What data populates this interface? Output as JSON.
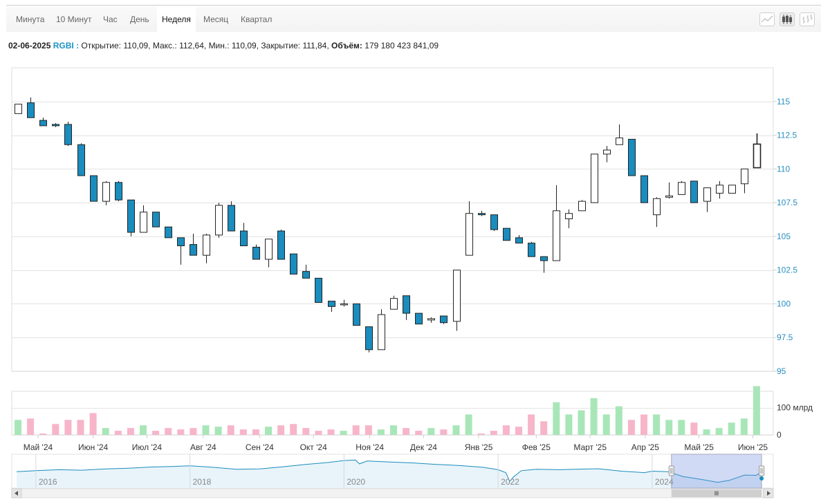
{
  "tabs": [
    {
      "label": "Минута",
      "active": false
    },
    {
      "label": "10 Минут",
      "active": false
    },
    {
      "label": "Час",
      "active": false
    },
    {
      "label": "День",
      "active": false
    },
    {
      "label": "Неделя",
      "active": true
    },
    {
      "label": "Месяц",
      "active": false
    },
    {
      "label": "Квартал",
      "active": false
    }
  ],
  "toolbar": [
    {
      "icon": "line-chart-icon"
    },
    {
      "icon": "candlestick-chart-icon",
      "active": true
    },
    {
      "icon": "ohlc-chart-icon"
    }
  ],
  "info": {
    "date": "02-06-2025",
    "ticker": "RGBI",
    "open_label": "Открытие:",
    "open": "110,09",
    "high_label": "Макс.:",
    "high": "112,64",
    "low_label": "Мин.:",
    "low": "110,09",
    "close_label": "Закрытие:",
    "close": "111,84",
    "volume_label": "Объём:",
    "volume": "179 180 423 841,09"
  },
  "colors": {
    "up": "#ffffff",
    "down": "#1a8cbd",
    "vol_up": "#a8e6b8",
    "vol_down": "#f7b5c9",
    "axis_text": "#2a8fbf",
    "grid": "#e3e3e3"
  },
  "chart_data": {
    "type": "candlestick",
    "interval": "week",
    "ylim": [
      95,
      117.5
    ],
    "yticks": [
      "95",
      "97.5",
      "100",
      "102.5",
      "105",
      "107.5",
      "110",
      "112.5",
      "115"
    ],
    "ytick_values": [
      95,
      97.5,
      100,
      102.5,
      105,
      107.5,
      110,
      112.5,
      115
    ],
    "volume_ticks": [
      "0",
      "100 млрд"
    ],
    "volume_tick_values": [
      0,
      100
    ],
    "volume_unit": "млрд",
    "volume_max": 160,
    "x_labels": [
      {
        "label": "Май '24",
        "week": 1.6
      },
      {
        "label": "Июн '24",
        "week": 6
      },
      {
        "label": "Июл '24",
        "week": 10.3
      },
      {
        "label": "Авг '24",
        "week": 14.8
      },
      {
        "label": "Сен '24",
        "week": 19.3
      },
      {
        "label": "Окт '24",
        "week": 23.6
      },
      {
        "label": "Ноя '24",
        "week": 28.1
      },
      {
        "label": "Дек '24",
        "week": 32.4
      },
      {
        "label": "Янв '25",
        "week": 36.8
      },
      {
        "label": "Фев '25",
        "week": 41.4
      },
      {
        "label": "Март '25",
        "week": 45.7
      },
      {
        "label": "Апр '25",
        "week": 50.1
      },
      {
        "label": "Май '25",
        "week": 54.4
      },
      {
        "label": "Июн '25",
        "week": 58.7
      }
    ],
    "candles": [
      {
        "o": 114.1,
        "h": 114.8,
        "l": 114.1,
        "c": 114.8,
        "v": 55
      },
      {
        "o": 114.9,
        "h": 115.3,
        "l": 113.8,
        "c": 113.8,
        "v": 60
      },
      {
        "o": 113.6,
        "h": 113.8,
        "l": 113.2,
        "c": 113.2,
        "v": 5
      },
      {
        "o": 113.3,
        "h": 113.4,
        "l": 113.1,
        "c": 113.2,
        "v": 40
      },
      {
        "o": 113.3,
        "h": 113.5,
        "l": 111.7,
        "c": 111.8,
        "v": 55
      },
      {
        "o": 111.8,
        "h": 111.9,
        "l": 109.5,
        "c": 109.5,
        "v": 55
      },
      {
        "o": 109.5,
        "h": 109.5,
        "l": 107.6,
        "c": 107.6,
        "v": 80
      },
      {
        "o": 107.6,
        "h": 109.1,
        "l": 107.3,
        "c": 109.0,
        "v": 25
      },
      {
        "o": 109.0,
        "h": 109.1,
        "l": 107.6,
        "c": 107.7,
        "v": 15
      },
      {
        "o": 107.7,
        "h": 107.7,
        "l": 105.0,
        "c": 105.3,
        "v": 25
      },
      {
        "o": 105.3,
        "h": 107.3,
        "l": 105.3,
        "c": 106.8,
        "v": 35
      },
      {
        "o": 106.8,
        "h": 106.8,
        "l": 105.7,
        "c": 105.7,
        "v": 15
      },
      {
        "o": 105.7,
        "h": 105.7,
        "l": 104.9,
        "c": 104.9,
        "v": 25
      },
      {
        "o": 104.9,
        "h": 104.9,
        "l": 102.9,
        "c": 104.3,
        "v": 20
      },
      {
        "o": 104.4,
        "h": 105.2,
        "l": 103.6,
        "c": 103.6,
        "v": 25
      },
      {
        "o": 103.6,
        "h": 105.2,
        "l": 103.0,
        "c": 105.1,
        "v": 35
      },
      {
        "o": 105.1,
        "h": 107.5,
        "l": 104.9,
        "c": 107.3,
        "v": 30
      },
      {
        "o": 107.3,
        "h": 107.6,
        "l": 105.4,
        "c": 105.4,
        "v": 35
      },
      {
        "o": 105.4,
        "h": 106.0,
        "l": 104.3,
        "c": 104.3,
        "v": 20
      },
      {
        "o": 104.2,
        "h": 104.4,
        "l": 103.3,
        "c": 103.3,
        "v": 20
      },
      {
        "o": 103.3,
        "h": 104.8,
        "l": 102.7,
        "c": 104.8,
        "v": 30
      },
      {
        "o": 105.4,
        "h": 105.5,
        "l": 103.3,
        "c": 103.3,
        "v": 35
      },
      {
        "o": 103.7,
        "h": 103.7,
        "l": 102.2,
        "c": 102.2,
        "v": 40
      },
      {
        "o": 102.4,
        "h": 102.9,
        "l": 101.9,
        "c": 101.9,
        "v": 25
      },
      {
        "o": 101.9,
        "h": 101.9,
        "l": 100.1,
        "c": 100.1,
        "v": 15
      },
      {
        "o": 100.2,
        "h": 100.2,
        "l": 99.4,
        "c": 99.8,
        "v": 20
      },
      {
        "o": 100.0,
        "h": 100.3,
        "l": 99.8,
        "c": 100.0,
        "v": 15
      },
      {
        "o": 100.0,
        "h": 100.0,
        "l": 98.4,
        "c": 98.4,
        "v": 35
      },
      {
        "o": 98.3,
        "h": 98.3,
        "l": 96.4,
        "c": 96.6,
        "v": 35
      },
      {
        "o": 96.6,
        "h": 99.6,
        "l": 96.6,
        "c": 99.2,
        "v": 20
      },
      {
        "o": 99.6,
        "h": 100.6,
        "l": 99.6,
        "c": 100.4,
        "v": 35
      },
      {
        "o": 100.6,
        "h": 100.6,
        "l": 98.8,
        "c": 99.3,
        "v": 25
      },
      {
        "o": 99.3,
        "h": 99.3,
        "l": 98.5,
        "c": 98.5,
        "v": 15
      },
      {
        "o": 98.8,
        "h": 99.0,
        "l": 98.6,
        "c": 98.9,
        "v": 25
      },
      {
        "o": 99.1,
        "h": 99.1,
        "l": 98.5,
        "c": 98.6,
        "v": 20
      },
      {
        "o": 98.7,
        "h": 102.5,
        "l": 98.0,
        "c": 102.5,
        "v": 35
      },
      {
        "o": 103.6,
        "h": 107.6,
        "l": 103.6,
        "c": 106.7,
        "v": 75
      },
      {
        "o": 106.7,
        "h": 106.9,
        "l": 106.5,
        "c": 106.6,
        "v": 5
      },
      {
        "o": 106.6,
        "h": 106.6,
        "l": 105.4,
        "c": 105.5,
        "v": 15
      },
      {
        "o": 105.6,
        "h": 105.6,
        "l": 104.7,
        "c": 104.7,
        "v": 35
      },
      {
        "o": 104.9,
        "h": 105.1,
        "l": 104.5,
        "c": 104.5,
        "v": 30
      },
      {
        "o": 104.5,
        "h": 104.6,
        "l": 103.5,
        "c": 103.5,
        "v": 75
      },
      {
        "o": 103.5,
        "h": 103.5,
        "l": 102.3,
        "c": 103.2,
        "v": 50
      },
      {
        "o": 103.2,
        "h": 108.8,
        "l": 103.2,
        "c": 106.9,
        "v": 120
      },
      {
        "o": 106.3,
        "h": 107.0,
        "l": 105.6,
        "c": 106.7,
        "v": 75
      },
      {
        "o": 106.9,
        "h": 107.7,
        "l": 106.9,
        "c": 107.6,
        "v": 90
      },
      {
        "o": 107.5,
        "h": 111.1,
        "l": 107.5,
        "c": 111.1,
        "v": 135
      },
      {
        "o": 111.1,
        "h": 111.7,
        "l": 110.5,
        "c": 111.4,
        "v": 75
      },
      {
        "o": 111.8,
        "h": 113.3,
        "l": 111.8,
        "c": 112.3,
        "v": 105
      },
      {
        "o": 112.2,
        "h": 112.2,
        "l": 109.5,
        "c": 109.5,
        "v": 55
      },
      {
        "o": 109.5,
        "h": 109.5,
        "l": 107.5,
        "c": 107.5,
        "v": 75
      },
      {
        "o": 106.6,
        "h": 107.9,
        "l": 105.7,
        "c": 107.8,
        "v": 75
      },
      {
        "o": 107.9,
        "h": 109.0,
        "l": 107.8,
        "c": 108.0,
        "v": 55
      },
      {
        "o": 108.1,
        "h": 109.1,
        "l": 108.1,
        "c": 109.0,
        "v": 55
      },
      {
        "o": 109.1,
        "h": 109.1,
        "l": 107.5,
        "c": 107.5,
        "v": 45
      },
      {
        "o": 107.6,
        "h": 108.6,
        "l": 106.8,
        "c": 108.6,
        "v": 20
      },
      {
        "o": 108.2,
        "h": 109.1,
        "l": 107.8,
        "c": 108.8,
        "v": 25
      },
      {
        "o": 108.2,
        "h": 108.8,
        "l": 108.2,
        "c": 108.8,
        "v": 45
      },
      {
        "o": 108.9,
        "h": 110.0,
        "l": 108.2,
        "c": 110.0,
        "v": 60
      },
      {
        "o": 110.09,
        "h": 112.64,
        "l": 110.09,
        "c": 111.84,
        "v": 179
      }
    ]
  },
  "navigator": {
    "year_labels": [
      "2016",
      "2018",
      "2020",
      "2022",
      "2024"
    ],
    "year_values": [
      2016,
      2018,
      2020,
      2022,
      2024
    ],
    "range_start": 2015.75,
    "range_end": 2025.5,
    "selection_start": 2024.25,
    "selection_end": 2025.42,
    "series": [
      [
        2015.75,
        112
      ],
      [
        2016.0,
        113
      ],
      [
        2016.3,
        114
      ],
      [
        2016.6,
        113.5
      ],
      [
        2016.9,
        114.8
      ],
      [
        2017.2,
        115.6
      ],
      [
        2017.5,
        116.8
      ],
      [
        2017.8,
        117.4
      ],
      [
        2018.0,
        118
      ],
      [
        2018.3,
        116.5
      ],
      [
        2018.6,
        114.5
      ],
      [
        2018.9,
        114.8
      ],
      [
        2019.2,
        117
      ],
      [
        2019.5,
        119.5
      ],
      [
        2019.8,
        121.5
      ],
      [
        2020.0,
        123.5
      ],
      [
        2020.15,
        124
      ],
      [
        2020.2,
        120
      ],
      [
        2020.3,
        123
      ],
      [
        2020.6,
        122
      ],
      [
        2020.9,
        121
      ],
      [
        2021.2,
        119.5
      ],
      [
        2021.5,
        118.3
      ],
      [
        2021.8,
        116.5
      ],
      [
        2022.0,
        114
      ],
      [
        2022.1,
        111
      ],
      [
        2022.15,
        102
      ],
      [
        2022.2,
        106.5
      ],
      [
        2022.3,
        113
      ],
      [
        2022.5,
        114.5
      ],
      [
        2022.8,
        114
      ],
      [
        2023.0,
        114.5
      ],
      [
        2023.3,
        115
      ],
      [
        2023.6,
        112.5
      ],
      [
        2023.9,
        111
      ],
      [
        2024.0,
        112.5
      ],
      [
        2024.2,
        112
      ],
      [
        2024.4,
        107
      ],
      [
        2024.6,
        104.5
      ],
      [
        2024.85,
        101
      ],
      [
        2025.0,
        103
      ],
      [
        2025.2,
        108.5
      ],
      [
        2025.35,
        108.2
      ],
      [
        2025.42,
        111.8
      ]
    ]
  }
}
